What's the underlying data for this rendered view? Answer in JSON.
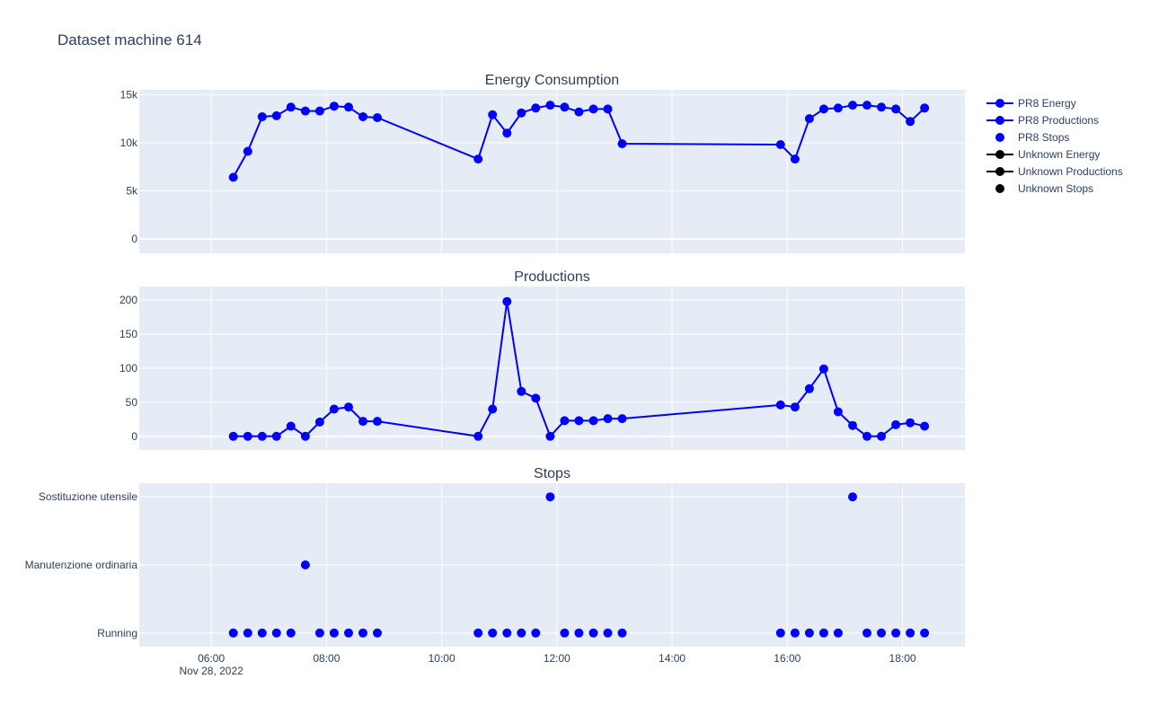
{
  "figure": {
    "title": "Dataset machine 614"
  },
  "x_axis": {
    "date_label": "Nov 28, 2022",
    "range": [
      "2022-11-28T04:45",
      "2022-11-28T19:05"
    ],
    "ticks": [
      "06:00",
      "08:00",
      "10:00",
      "12:00",
      "14:00",
      "16:00",
      "18:00"
    ]
  },
  "legend": {
    "placement": "top-right",
    "items": [
      {
        "label": "PR8 Energy",
        "color": "#0000ff",
        "symbol": "line-marker"
      },
      {
        "label": "PR8 Productions",
        "color": "#0000ff",
        "symbol": "line-marker"
      },
      {
        "label": "PR8 Stops",
        "color": "#0000ff",
        "symbol": "marker"
      },
      {
        "label": "Unknown Energy",
        "color": "#000000",
        "symbol": "line-marker"
      },
      {
        "label": "Unknown Productions",
        "color": "#000000",
        "symbol": "line-marker"
      },
      {
        "label": "Unknown Stops",
        "color": "#000000",
        "symbol": "marker"
      }
    ]
  },
  "colors": {
    "series": "#0000ff",
    "unknown": "#000000",
    "plot_bg": "#e5ecf6",
    "text": "#2a3f5f"
  },
  "chart_data": [
    {
      "type": "line",
      "title": "Energy Consumption",
      "series_name": "PR8 Energy",
      "ylim": [
        -1500,
        15500
      ],
      "ytick_values": [
        0,
        5000,
        10000,
        15000
      ],
      "ytick_labels": [
        "0",
        "5k",
        "10k",
        "15k"
      ],
      "grid": true,
      "x": [
        "06:23",
        "06:38",
        "06:53",
        "07:08",
        "07:23",
        "07:38",
        "07:53",
        "08:08",
        "08:23",
        "08:38",
        "08:53",
        "10:38",
        "10:53",
        "11:08",
        "11:23",
        "11:38",
        "11:53",
        "12:08",
        "12:23",
        "12:38",
        "12:53",
        "13:08",
        "15:53",
        "16:08",
        "16:23",
        "16:38",
        "16:53",
        "17:08",
        "17:23",
        "17:38",
        "17:53",
        "18:08",
        "18:23"
      ],
      "y": [
        6400,
        9100,
        12700,
        12800,
        13700,
        13300,
        13300,
        13800,
        13700,
        12700,
        12600,
        8300,
        12900,
        11000,
        13100,
        13600,
        13900,
        13700,
        13200,
        13500,
        13500,
        9900,
        9800,
        8300,
        12500,
        13500,
        13600,
        13900,
        13900,
        13700,
        13500,
        12200,
        13600
      ]
    },
    {
      "type": "line",
      "title": "Productions",
      "series_name": "PR8 Productions",
      "ylim": [
        -20,
        220
      ],
      "ytick_values": [
        0,
        50,
        100,
        150,
        200
      ],
      "ytick_labels": [
        "0",
        "50",
        "100",
        "150",
        "200"
      ],
      "grid": true,
      "x": [
        "06:23",
        "06:38",
        "06:53",
        "07:08",
        "07:23",
        "07:38",
        "07:53",
        "08:08",
        "08:23",
        "08:38",
        "08:53",
        "10:38",
        "10:53",
        "11:08",
        "11:23",
        "11:38",
        "11:53",
        "12:08",
        "12:23",
        "12:38",
        "12:53",
        "13:08",
        "15:53",
        "16:08",
        "16:23",
        "16:38",
        "16:53",
        "17:08",
        "17:23",
        "17:38",
        "17:53",
        "18:08",
        "18:23"
      ],
      "y": [
        0,
        0,
        0,
        0,
        15,
        0,
        21,
        40,
        43,
        22,
        22,
        0,
        40,
        198,
        66,
        56,
        0,
        23,
        23,
        23,
        26,
        26,
        46,
        43,
        70,
        99,
        36,
        16,
        0,
        0,
        17,
        20,
        15
      ]
    },
    {
      "type": "scatter",
      "title": "Stops",
      "series_name": "PR8 Stops",
      "categories": [
        "Running",
        "Manutenzione ordinaria",
        "Sostituzione utensile"
      ],
      "grid": true,
      "x": [
        "06:23",
        "06:38",
        "06:53",
        "07:08",
        "07:23",
        "07:38",
        "07:53",
        "08:08",
        "08:23",
        "08:38",
        "08:53",
        "10:38",
        "10:53",
        "11:08",
        "11:23",
        "11:38",
        "11:53",
        "12:08",
        "12:23",
        "12:38",
        "12:53",
        "13:08",
        "15:53",
        "16:08",
        "16:23",
        "16:38",
        "16:53",
        "17:08",
        "17:23",
        "17:38",
        "17:53",
        "18:08",
        "18:23"
      ],
      "y": [
        "Running",
        "Running",
        "Running",
        "Running",
        "Running",
        "Manutenzione ordinaria",
        "Running",
        "Running",
        "Running",
        "Running",
        "Running",
        "Running",
        "Running",
        "Running",
        "Running",
        "Running",
        "Sostituzione utensile",
        "Running",
        "Running",
        "Running",
        "Running",
        "Running",
        "Running",
        "Running",
        "Running",
        "Running",
        "Running",
        "Sostituzione utensile",
        "Running",
        "Running",
        "Running",
        "Running",
        "Running"
      ]
    }
  ]
}
